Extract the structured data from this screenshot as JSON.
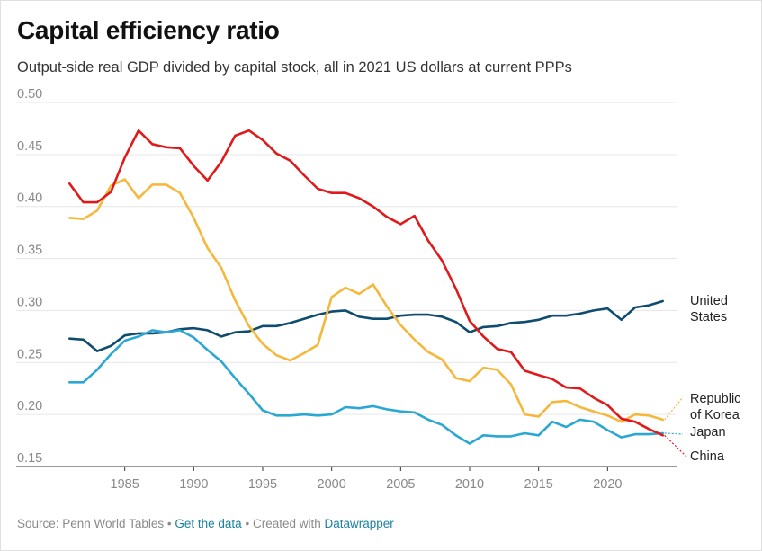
{
  "title": "Capital efficiency ratio",
  "subtitle": "Output-side real GDP divided by capital stock, all in 2021 US dollars at current PPPs",
  "footer": {
    "source": "Source: Penn World Tables",
    "separator": "•",
    "get_data": "Get the data",
    "created_with": "Created with",
    "datawrapper": "Datawrapper"
  },
  "chart_data": {
    "type": "line",
    "title": "Capital efficiency ratio",
    "xlabel": "",
    "ylabel": "",
    "xlim": [
      1980,
      2025
    ],
    "ylim": [
      0.15,
      0.5
    ],
    "xticks": [
      1985,
      1990,
      1995,
      2000,
      2005,
      2010,
      2015,
      2020
    ],
    "yticks": [
      0.15,
      0.2,
      0.25,
      0.3,
      0.35,
      0.4,
      0.45,
      0.5
    ],
    "x": [
      1981,
      1982,
      1983,
      1984,
      1985,
      1986,
      1987,
      1988,
      1989,
      1990,
      1991,
      1992,
      1993,
      1994,
      1995,
      1996,
      1997,
      1998,
      1999,
      2000,
      2001,
      2002,
      2003,
      2004,
      2005,
      2006,
      2007,
      2008,
      2009,
      2010,
      2011,
      2012,
      2013,
      2014,
      2015,
      2016,
      2017,
      2018,
      2019,
      2020,
      2021,
      2022,
      2023,
      2024
    ],
    "series": [
      {
        "name": "United States",
        "label_lines": [
          "United",
          "States"
        ],
        "color": "#0f4c6e",
        "values": [
          0.273,
          0.272,
          0.261,
          0.266,
          0.276,
          0.278,
          0.278,
          0.279,
          0.282,
          0.283,
          0.281,
          0.275,
          0.279,
          0.28,
          0.285,
          0.285,
          0.288,
          0.292,
          0.296,
          0.299,
          0.3,
          0.294,
          0.292,
          0.292,
          0.295,
          0.296,
          0.296,
          0.294,
          0.289,
          0.279,
          0.284,
          0.285,
          0.288,
          0.289,
          0.291,
          0.295,
          0.295,
          0.297,
          0.3,
          0.302,
          0.291,
          0.303,
          0.305,
          0.309
        ]
      },
      {
        "name": "Republic of Korea",
        "label_lines": [
          "Republic",
          "of Korea"
        ],
        "color": "#f5b83d",
        "values": [
          0.389,
          0.388,
          0.396,
          0.42,
          0.426,
          0.408,
          0.421,
          0.421,
          0.413,
          0.389,
          0.36,
          0.341,
          0.31,
          0.285,
          0.268,
          0.257,
          0.252,
          0.259,
          0.267,
          0.313,
          0.322,
          0.316,
          0.325,
          0.304,
          0.286,
          0.272,
          0.26,
          0.253,
          0.235,
          0.232,
          0.245,
          0.243,
          0.229,
          0.2,
          0.198,
          0.212,
          0.213,
          0.207,
          0.203,
          0.199,
          0.193,
          0.2,
          0.199,
          0.195
        ]
      },
      {
        "name": "Japan",
        "label_lines": [
          "Japan"
        ],
        "color": "#2ba7d4",
        "values": [
          0.231,
          0.231,
          0.243,
          0.258,
          0.271,
          0.275,
          0.281,
          0.279,
          0.281,
          0.274,
          0.262,
          0.251,
          0.235,
          0.22,
          0.204,
          0.199,
          0.199,
          0.2,
          0.199,
          0.2,
          0.207,
          0.206,
          0.208,
          0.205,
          0.203,
          0.202,
          0.195,
          0.19,
          0.18,
          0.172,
          0.18,
          0.179,
          0.179,
          0.182,
          0.18,
          0.193,
          0.188,
          0.195,
          0.193,
          0.185,
          0.178,
          0.181,
          0.181,
          0.182
        ]
      },
      {
        "name": "China",
        "label_lines": [
          "China"
        ],
        "color": "#e01a1a",
        "values": [
          0.422,
          0.404,
          0.404,
          0.414,
          0.447,
          0.473,
          0.46,
          0.457,
          0.456,
          0.439,
          0.425,
          0.443,
          0.468,
          0.473,
          0.464,
          0.451,
          0.444,
          0.43,
          0.417,
          0.413,
          0.413,
          0.408,
          0.4,
          0.39,
          0.383,
          0.391,
          0.367,
          0.348,
          0.321,
          0.29,
          0.275,
          0.263,
          0.26,
          0.242,
          0.238,
          0.234,
          0.226,
          0.225,
          0.216,
          0.209,
          0.196,
          0.193,
          0.186,
          0.18
        ]
      }
    ]
  }
}
